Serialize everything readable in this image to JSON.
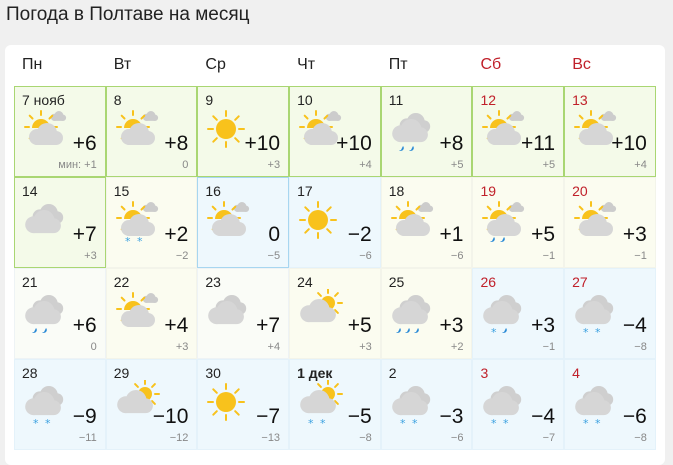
{
  "title": "Погода в Полтаве на месяц",
  "colors": {
    "weekend": "#c0202a",
    "sun": "#f8c21c",
    "cloud": "#d6d6d6",
    "snow": "#3aa0e0",
    "rain": "#2a8ad6"
  },
  "weekdays": [
    {
      "label": "Пн",
      "weekend": false
    },
    {
      "label": "Вт",
      "weekend": false
    },
    {
      "label": "Ср",
      "weekend": false
    },
    {
      "label": "Чт",
      "weekend": false
    },
    {
      "label": "Пт",
      "weekend": false
    },
    {
      "label": "Сб",
      "weekend": true
    },
    {
      "label": "Вс",
      "weekend": true
    }
  ],
  "days": [
    {
      "date": "7 нояб",
      "icon": "partly",
      "precip": "",
      "max": "+6",
      "min": "мин: +1",
      "bg": "g"
    },
    {
      "date": "8",
      "icon": "partly",
      "precip": "",
      "max": "+8",
      "min": "0",
      "bg": "g"
    },
    {
      "date": "9",
      "icon": "sun",
      "precip": "",
      "max": "+10",
      "min": "+3",
      "bg": "g"
    },
    {
      "date": "10",
      "icon": "partly",
      "precip": "",
      "max": "+10",
      "min": "+4",
      "bg": "g"
    },
    {
      "date": "11",
      "icon": "cloud",
      "precip": "rain",
      "max": "+8",
      "min": "+5",
      "bg": "g"
    },
    {
      "date": "12",
      "icon": "partly",
      "precip": "",
      "max": "+11",
      "min": "+5",
      "bg": "g",
      "weekend": true
    },
    {
      "date": "13",
      "icon": "partly",
      "precip": "",
      "max": "+10",
      "min": "+4",
      "bg": "g",
      "weekend": true
    },
    {
      "date": "14",
      "icon": "cloud",
      "precip": "",
      "max": "+7",
      "min": "+3",
      "bg": "g"
    },
    {
      "date": "15",
      "icon": "partly",
      "precip": "snow",
      "max": "+2",
      "min": "−2",
      "bg": "y"
    },
    {
      "date": "16",
      "icon": "partly",
      "precip": "",
      "max": "0",
      "min": "−5",
      "bg": "bb"
    },
    {
      "date": "17",
      "icon": "sun",
      "precip": "",
      "max": "−2",
      "min": "−6",
      "bg": "b"
    },
    {
      "date": "18",
      "icon": "partly",
      "precip": "",
      "max": "+1",
      "min": "−6",
      "bg": "y"
    },
    {
      "date": "19",
      "icon": "partly",
      "precip": "rain",
      "max": "+5",
      "min": "−1",
      "bg": "y",
      "weekend": true
    },
    {
      "date": "20",
      "icon": "partly",
      "precip": "",
      "max": "+3",
      "min": "−1",
      "bg": "y",
      "weekend": true
    },
    {
      "date": "21",
      "icon": "cloud",
      "precip": "rain",
      "max": "+6",
      "min": "0",
      "bg": "w"
    },
    {
      "date": "22",
      "icon": "partly",
      "precip": "",
      "max": "+4",
      "min": "+3",
      "bg": "y"
    },
    {
      "date": "23",
      "icon": "cloud",
      "precip": "",
      "max": "+7",
      "min": "+4",
      "bg": "w"
    },
    {
      "date": "24",
      "icon": "cloudsun",
      "precip": "",
      "max": "+5",
      "min": "+3",
      "bg": "y"
    },
    {
      "date": "25",
      "icon": "cloud",
      "precip": "rain3",
      "max": "+3",
      "min": "+2",
      "bg": "y"
    },
    {
      "date": "26",
      "icon": "cloud",
      "precip": "sleet",
      "max": "+3",
      "min": "−1",
      "bg": "b",
      "weekend": true
    },
    {
      "date": "27",
      "icon": "cloud",
      "precip": "snow",
      "max": "−4",
      "min": "−8",
      "bg": "b",
      "weekend": true
    },
    {
      "date": "28",
      "icon": "cloud",
      "precip": "snow",
      "max": "−9",
      "min": "−11",
      "bg": "b"
    },
    {
      "date": "29",
      "icon": "cloudsun",
      "precip": "",
      "max": "−10",
      "min": "−12",
      "bg": "b"
    },
    {
      "date": "30",
      "icon": "sun",
      "precip": "",
      "max": "−7",
      "min": "−13",
      "bg": "b"
    },
    {
      "date": "1 дек",
      "icon": "cloudsun",
      "precip": "snow",
      "max": "−5",
      "min": "−8",
      "bg": "b",
      "month": true
    },
    {
      "date": "2",
      "icon": "cloud",
      "precip": "snow",
      "max": "−3",
      "min": "−6",
      "bg": "b"
    },
    {
      "date": "3",
      "icon": "cloud",
      "precip": "snow",
      "max": "−4",
      "min": "−7",
      "bg": "b",
      "weekend": true
    },
    {
      "date": "4",
      "icon": "cloud",
      "precip": "snow",
      "max": "−6",
      "min": "−8",
      "bg": "b",
      "weekend": true
    }
  ]
}
